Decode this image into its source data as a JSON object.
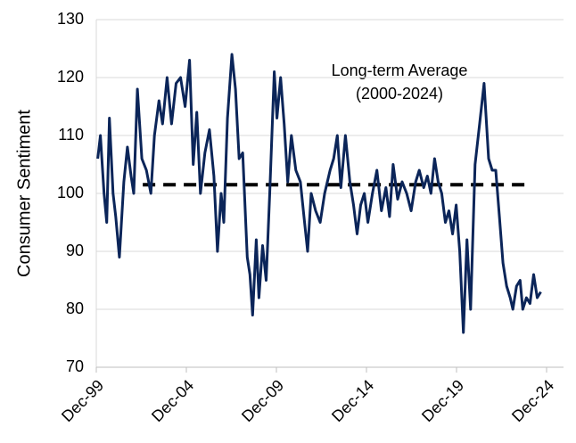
{
  "chart_data": {
    "type": "line",
    "y_label": "Consumer Sentiment",
    "annotation": [
      "Long-term Average",
      "(2000-2024)"
    ],
    "reference_line": {
      "value": 101.5,
      "x": [
        2002.5,
        2023.8
      ],
      "color": "#000000"
    },
    "x": [
      2000.0,
      2000.15,
      2000.35,
      2000.5,
      2000.65,
      2000.85,
      2001.0,
      2001.2,
      2001.45,
      2001.65,
      2001.85,
      2002.0,
      2002.2,
      2002.45,
      2002.7,
      2002.95,
      2003.15,
      2003.4,
      2003.6,
      2003.85,
      2004.1,
      2004.35,
      2004.6,
      2004.85,
      2005.1,
      2005.3,
      2005.5,
      2005.7,
      2005.95,
      2006.2,
      2006.45,
      2006.65,
      2006.85,
      2007.0,
      2007.2,
      2007.45,
      2007.65,
      2007.85,
      2008.05,
      2008.3,
      2008.45,
      2008.6,
      2008.8,
      2008.95,
      2009.15,
      2009.35,
      2009.55,
      2009.8,
      2009.95,
      2010.15,
      2010.35,
      2010.55,
      2010.75,
      2011.0,
      2011.25,
      2011.45,
      2011.65,
      2011.85,
      2012.1,
      2012.35,
      2012.6,
      2012.9,
      2013.1,
      2013.3,
      2013.5,
      2013.75,
      2014.0,
      2014.2,
      2014.4,
      2014.6,
      2014.8,
      2015.0,
      2015.25,
      2015.5,
      2015.75,
      2016.0,
      2016.2,
      2016.4,
      2016.65,
      2016.9,
      2017.15,
      2017.4,
      2017.65,
      2017.85,
      2018.1,
      2018.3,
      2018.5,
      2018.7,
      2018.9,
      2019.1,
      2019.3,
      2019.5,
      2019.7,
      2019.9,
      2020.1,
      2020.3,
      2020.5,
      2020.7,
      2020.95,
      2021.2,
      2021.45,
      2021.7,
      2021.9,
      2022.1,
      2022.3,
      2022.5,
      2022.7,
      2022.9,
      2023.05,
      2023.25,
      2023.45,
      2023.6,
      2023.8,
      2024.0,
      2024.2,
      2024.4,
      2024.6
    ],
    "series": [
      {
        "name": "Consumer Sentiment",
        "color": "#0b2559",
        "values": [
          106,
          110,
          100,
          95,
          113,
          100,
          96,
          89,
          102,
          108,
          103,
          100,
          118,
          106,
          104,
          100,
          110,
          116,
          112,
          120,
          112,
          119,
          120,
          115,
          123,
          105,
          114,
          100,
          107,
          111,
          103,
          90,
          100,
          95,
          113,
          124,
          118,
          106,
          107,
          89,
          86,
          79,
          92,
          82,
          91,
          85,
          100,
          121,
          113,
          120,
          112,
          102,
          110,
          104,
          102,
          96,
          90,
          100,
          97,
          95,
          100,
          104,
          106,
          110,
          101,
          110,
          102,
          98,
          93,
          98,
          100,
          95,
          100,
          104,
          97,
          101,
          96,
          105,
          99,
          102,
          100,
          97,
          102,
          104,
          101,
          103,
          100,
          106,
          102,
          100,
          95,
          97,
          93,
          98,
          90,
          76,
          92,
          80,
          105,
          112,
          119,
          106,
          104,
          104,
          96,
          88,
          84,
          82,
          80,
          84,
          85,
          80,
          82,
          81,
          86,
          82,
          83
        ]
      }
    ],
    "xlim": [
      1999.92,
      2025.86
    ],
    "xticks": [
      {
        "value": 1999.92,
        "label": "Dec-99"
      },
      {
        "value": 2004.92,
        "label": "Dec-04"
      },
      {
        "value": 2009.92,
        "label": "Dec-09"
      },
      {
        "value": 2014.92,
        "label": "Dec-14"
      },
      {
        "value": 2019.92,
        "label": "Dec-19"
      },
      {
        "value": 2024.92,
        "label": "Dec-24"
      }
    ],
    "ylim": [
      70,
      130
    ],
    "yticks": [
      70,
      80,
      90,
      100,
      110,
      120,
      130
    ],
    "grid": true
  }
}
